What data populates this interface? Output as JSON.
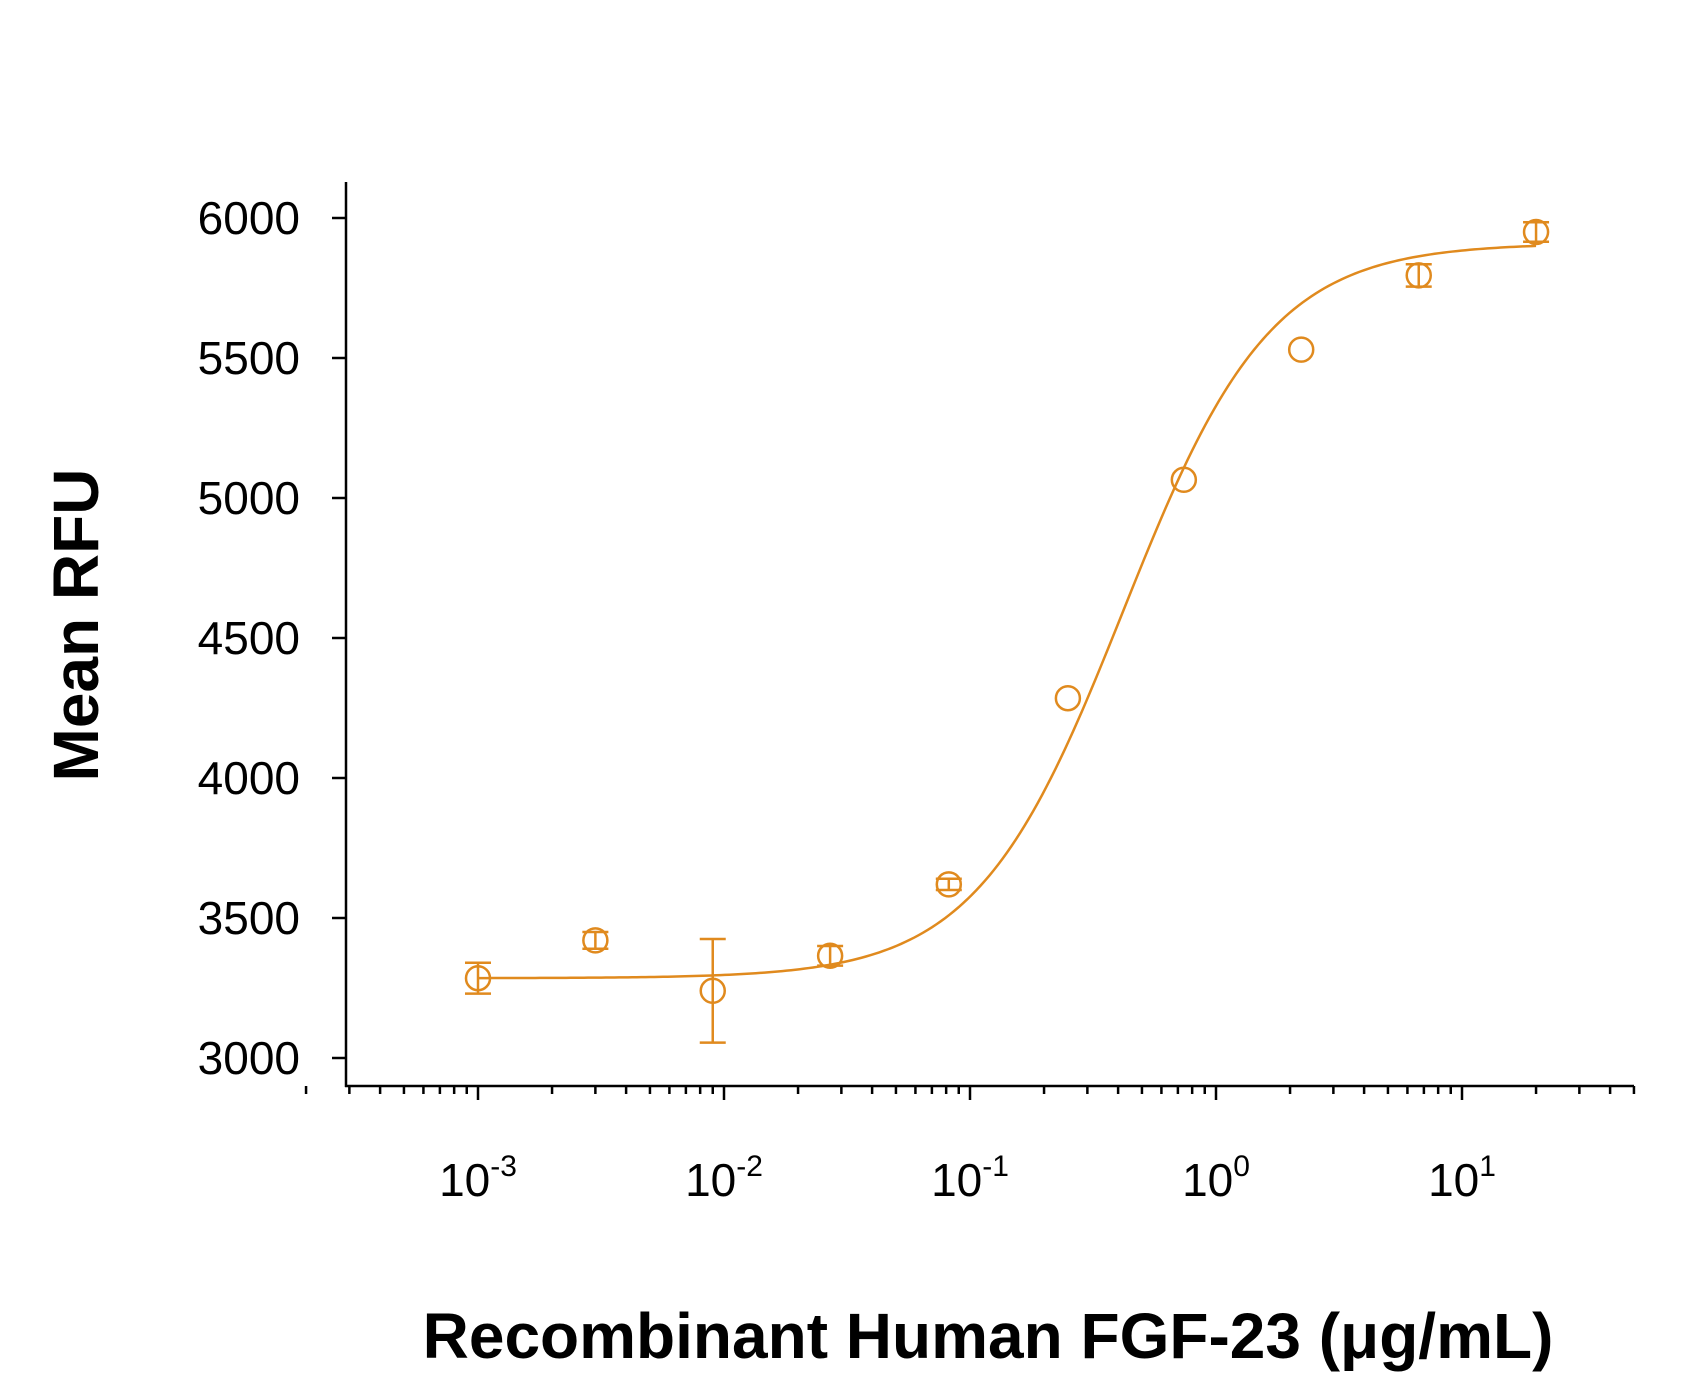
{
  "chart_data": {
    "type": "scatter",
    "title": "",
    "xlabel": "Recombinant Human FGF-23 (μg/mL)",
    "ylabel": "Mean RFU",
    "x_scale": "log",
    "xlim": [
      0.0002,
      50
    ],
    "ylim": [
      2950,
      6120
    ],
    "x_ticks": [
      {
        "base": "10",
        "exp": "-3",
        "value": 0.001
      },
      {
        "base": "10",
        "exp": "-2",
        "value": 0.01
      },
      {
        "base": "10",
        "exp": "-1",
        "value": 0.1
      },
      {
        "base": "10",
        "exp": "0",
        "value": 1
      },
      {
        "base": "10",
        "exp": "1",
        "value": 10
      }
    ],
    "y_ticks": [
      "3000",
      "3500",
      "4000",
      "4500",
      "5000",
      "5500",
      "6000"
    ],
    "color": "#E08A1E",
    "marker": "open-circle",
    "error_bars": true,
    "grid": false,
    "legend": "none",
    "points": [
      {
        "x": 0.001,
        "y": 3285,
        "err": 55
      },
      {
        "x": 0.003,
        "y": 3420,
        "err": 30
      },
      {
        "x": 0.009,
        "y": 3240,
        "err": 185
      },
      {
        "x": 0.027,
        "y": 3365,
        "err": 35
      },
      {
        "x": 0.082,
        "y": 3620,
        "err": 20
      },
      {
        "x": 0.25,
        "y": 4285,
        "err": 0
      },
      {
        "x": 0.74,
        "y": 5065,
        "err": 0
      },
      {
        "x": 2.22,
        "y": 5530,
        "err": 0
      },
      {
        "x": 6.67,
        "y": 5795,
        "err": 40
      },
      {
        "x": 20,
        "y": 5950,
        "err": 35
      }
    ],
    "fit": {
      "model": "4PL",
      "bottom": 3285,
      "top": 5910,
      "ec50": 0.42,
      "hill": 1.45
    }
  }
}
